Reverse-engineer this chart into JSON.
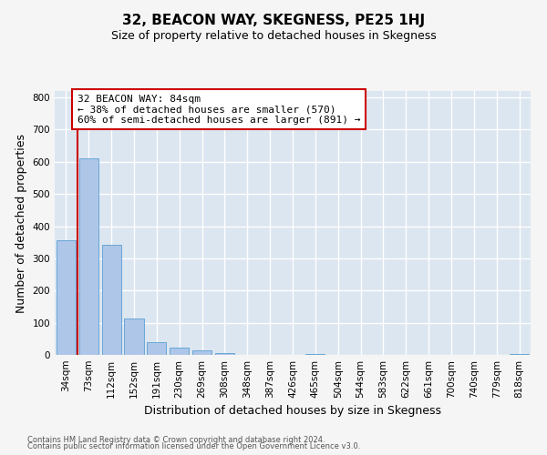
{
  "title": "32, BEACON WAY, SKEGNESS, PE25 1HJ",
  "subtitle": "Size of property relative to detached houses in Skegness",
  "xlabel": "Distribution of detached houses by size in Skegness",
  "ylabel": "Number of detached properties",
  "bar_labels": [
    "34sqm",
    "73sqm",
    "112sqm",
    "152sqm",
    "191sqm",
    "230sqm",
    "269sqm",
    "308sqm",
    "348sqm",
    "387sqm",
    "426sqm",
    "465sqm",
    "504sqm",
    "544sqm",
    "583sqm",
    "622sqm",
    "661sqm",
    "700sqm",
    "740sqm",
    "779sqm",
    "818sqm"
  ],
  "bar_values": [
    357,
    610,
    343,
    113,
    40,
    22,
    14,
    5,
    0,
    0,
    0,
    4,
    0,
    0,
    0,
    0,
    0,
    0,
    0,
    0,
    4
  ],
  "bar_color": "#aec6e8",
  "bar_edgecolor": "#5a9fd4",
  "bg_color": "#dce6f0",
  "grid_color": "#ffffff",
  "annotation_box_text": "32 BEACON WAY: 84sqm\n← 38% of detached houses are smaller (570)\n60% of semi-detached houses are larger (891) →",
  "annotation_box_color": "#cc0000",
  "footer_line1": "Contains HM Land Registry data © Crown copyright and database right 2024.",
  "footer_line2": "Contains public sector information licensed under the Open Government Licence v3.0.",
  "ylim": [
    0,
    820
  ],
  "yticks": [
    0,
    100,
    200,
    300,
    400,
    500,
    600,
    700,
    800
  ],
  "title_fontsize": 11,
  "subtitle_fontsize": 9,
  "axis_label_fontsize": 9,
  "tick_fontsize": 7.5,
  "footer_fontsize": 6
}
